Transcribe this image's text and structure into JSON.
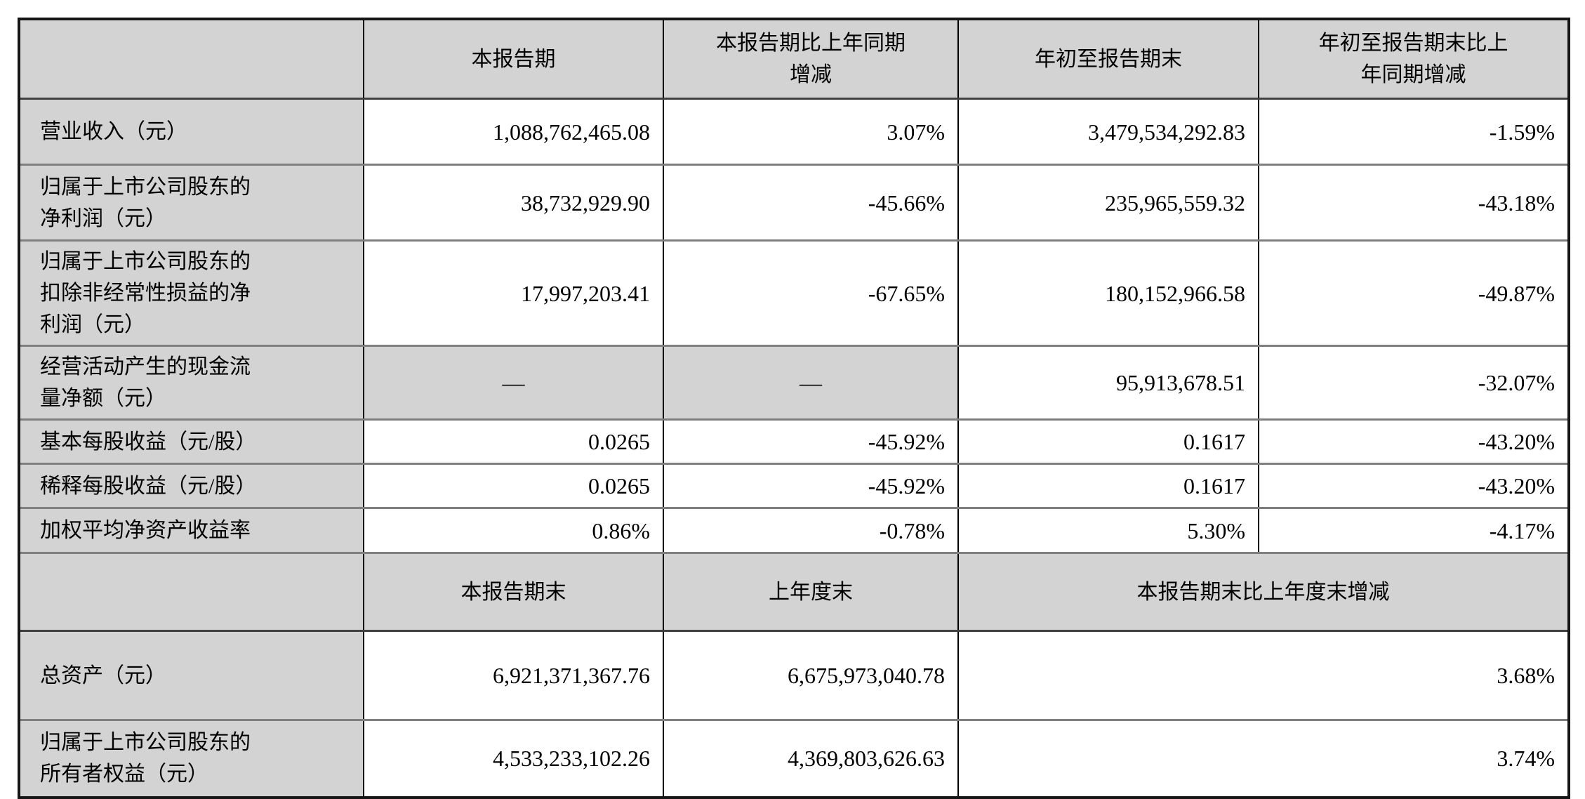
{
  "colors": {
    "page_bg": "#ffffff",
    "cell_bg_gray": "#d3d3d3",
    "grid_vertical": "#000000",
    "grid_horizontal": "#7f7f7f",
    "outer_border": "#161616",
    "text": "#000000"
  },
  "table": {
    "section1": {
      "header": [
        "",
        "本报告期",
        "本报告期比上年同期\n增减",
        "年初至报告期末",
        "年初至报告期末比上\n年同期增减"
      ],
      "rows": [
        {
          "label": "营业收入（元）",
          "cells": [
            {
              "t": "1,088,762,465.08"
            },
            {
              "t": "3.07%"
            },
            {
              "t": "3,479,534,292.83"
            },
            {
              "t": "-1.59%"
            }
          ]
        },
        {
          "label": "归属于上市公司股东的\n净利润（元）",
          "cells": [
            {
              "t": "38,732,929.90"
            },
            {
              "t": "-45.66%"
            },
            {
              "t": "235,965,559.32"
            },
            {
              "t": "-43.18%"
            }
          ]
        },
        {
          "label": "归属于上市公司股东的\n扣除非经常性损益的净\n利润（元）",
          "cells": [
            {
              "t": "17,997,203.41"
            },
            {
              "t": "-67.65%"
            },
            {
              "t": "180,152,966.58"
            },
            {
              "t": "-49.87%"
            }
          ]
        },
        {
          "label": "经营活动产生的现金流\n量净额（元）",
          "cells": [
            {
              "t": "—",
              "center": true,
              "gray": true
            },
            {
              "t": "—",
              "center": true,
              "gray": true
            },
            {
              "t": "95,913,678.51"
            },
            {
              "t": "-32.07%"
            }
          ]
        },
        {
          "label": "基本每股收益（元/股）",
          "cells": [
            {
              "t": "0.0265"
            },
            {
              "t": "-45.92%"
            },
            {
              "t": "0.1617"
            },
            {
              "t": "-43.20%"
            }
          ]
        },
        {
          "label": "稀释每股收益（元/股）",
          "cells": [
            {
              "t": "0.0265"
            },
            {
              "t": "-45.92%"
            },
            {
              "t": "0.1617"
            },
            {
              "t": "-43.20%"
            }
          ]
        },
        {
          "label": "加权平均净资产收益率",
          "cells": [
            {
              "t": "0.86%"
            },
            {
              "t": "-0.78%"
            },
            {
              "t": "5.30%"
            },
            {
              "t": "-4.17%"
            }
          ]
        }
      ]
    },
    "section2": {
      "header": [
        "",
        "本报告期末",
        "上年度末",
        "本报告期末比上年度末增减"
      ],
      "header_spans": [
        1,
        1,
        1,
        2
      ],
      "rows": [
        {
          "label": "总资产（元）",
          "cells": [
            {
              "t": "6,921,371,367.76"
            },
            {
              "t": "6,675,973,040.78"
            },
            {
              "t": "3.68%",
              "span": 2
            }
          ]
        },
        {
          "label": "归属于上市公司股东的\n所有者权益（元）",
          "cells": [
            {
              "t": "4,533,233,102.26"
            },
            {
              "t": "4,369,803,626.63"
            },
            {
              "t": "3.74%",
              "span": 2
            }
          ]
        }
      ]
    }
  }
}
